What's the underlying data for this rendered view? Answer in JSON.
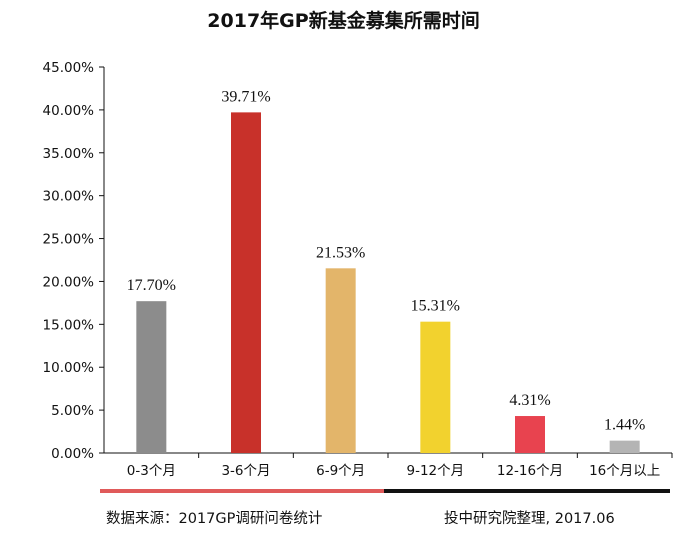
{
  "chart_data": {
    "type": "bar",
    "title": "2017年GP新基金募集所需时间",
    "categories": [
      "0-3个月",
      "3-6个月",
      "6-9个月",
      "9-12个月",
      "12-16个月",
      "16个月以上"
    ],
    "values": [
      17.7,
      39.71,
      21.53,
      15.31,
      4.31,
      1.44
    ],
    "value_labels": [
      "17.70%",
      "39.71%",
      "21.53%",
      "15.31%",
      "4.31%",
      "1.44%"
    ],
    "colors": [
      "#8c8c8c",
      "#c8312a",
      "#e3b56a",
      "#f2d22e",
      "#e8434f",
      "#b4b4b4"
    ],
    "ylim": [
      0,
      45
    ],
    "yticks": [
      0,
      5,
      10,
      15,
      20,
      25,
      30,
      35,
      40,
      45
    ],
    "ytick_labels": [
      "0.00%",
      "5.00%",
      "10.00%",
      "15.00%",
      "20.00%",
      "25.00%",
      "30.00%",
      "35.00%",
      "40.00%",
      "45.00%"
    ],
    "xlabel": "",
    "ylabel": "",
    "grid": false,
    "legend": "none"
  },
  "footer": {
    "source": "数据来源：2017GP调研问卷统计",
    "credit": "投中研究院整理, 2017.06",
    "bar_colors": [
      "#e05a5a",
      "#111111"
    ]
  }
}
